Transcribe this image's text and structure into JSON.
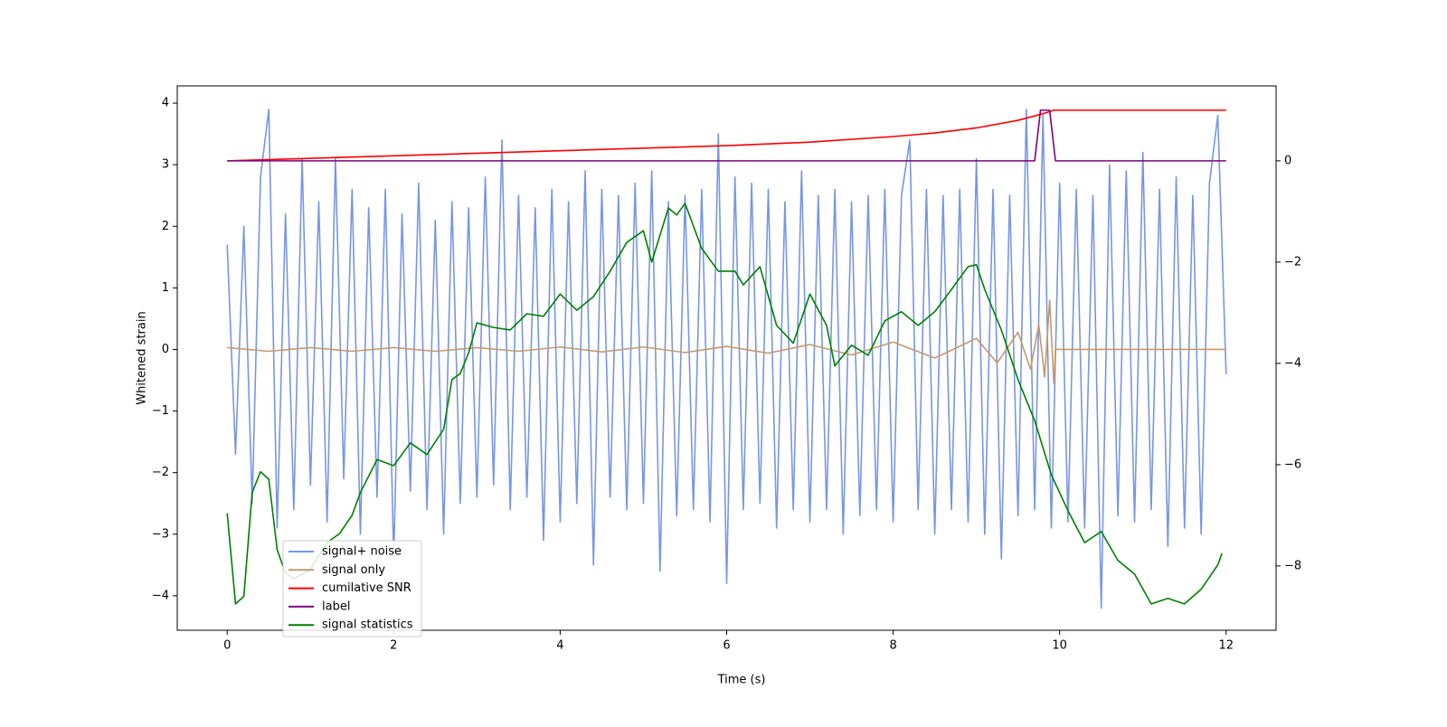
{
  "chart_data": {
    "type": "line",
    "xlabel": "Time (s)",
    "ylabel": "Whitened strain",
    "xlim": [
      -0.6,
      12.6
    ],
    "xticks": [
      0,
      2,
      4,
      6,
      8,
      10,
      12
    ],
    "ylim": [
      -4.56,
      4.28
    ],
    "yticks": [
      {
        "value": -4,
        "label": "−4"
      },
      {
        "value": -3,
        "label": "−3"
      },
      {
        "value": -2,
        "label": "−2"
      },
      {
        "value": -1,
        "label": "−1"
      },
      0,
      1,
      2,
      3,
      4
    ],
    "y2lim": [
      -9.27,
      1.48
    ],
    "y2ticks": [
      {
        "value": -8,
        "label": "−8"
      },
      {
        "value": -6,
        "label": "−6"
      },
      {
        "value": -4,
        "label": "−4"
      },
      {
        "value": -2,
        "label": "−2"
      },
      0
    ],
    "legend": "lower left",
    "series": [
      {
        "name": "signal+ noise",
        "color": "#7896e8",
        "x": [
          0,
          0.1,
          0.2,
          0.3,
          0.4,
          0.5,
          0.6,
          0.7,
          0.8,
          0.9,
          1,
          1.1,
          1.2,
          1.3,
          1.4,
          1.5,
          1.6,
          1.7,
          1.8,
          1.9,
          2,
          2.1,
          2.2,
          2.3,
          2.4,
          2.5,
          2.6,
          2.7,
          2.8,
          2.9,
          3,
          3.1,
          3.2,
          3.3,
          3.4,
          3.5,
          3.6,
          3.7,
          3.8,
          3.9,
          4,
          4.1,
          4.2,
          4.3,
          4.4,
          4.5,
          4.6,
          4.7,
          4.8,
          4.9,
          5,
          5.1,
          5.2,
          5.3,
          5.4,
          5.5,
          5.6,
          5.7,
          5.8,
          5.9,
          6,
          6.1,
          6.2,
          6.3,
          6.4,
          6.5,
          6.6,
          6.7,
          6.8,
          6.9,
          7,
          7.1,
          7.2,
          7.3,
          7.4,
          7.5,
          7.6,
          7.7,
          7.8,
          7.9,
          8,
          8.1,
          8.2,
          8.3,
          8.4,
          8.5,
          8.6,
          8.7,
          8.8,
          8.9,
          9,
          9.1,
          9.2,
          9.3,
          9.4,
          9.5,
          9.6,
          9.7,
          9.8,
          9.9,
          10,
          10.1,
          10.2,
          10.3,
          10.4,
          10.5,
          10.6,
          10.7,
          10.8,
          10.9,
          11,
          11.1,
          11.2,
          11.3,
          11.4,
          11.5,
          11.6,
          11.7,
          11.8,
          11.9,
          12
        ],
        "values": [
          1.7,
          -1.7,
          2.0,
          -2.5,
          2.8,
          3.9,
          -2.9,
          2.2,
          -2.6,
          3.1,
          -2.2,
          2.4,
          -2.8,
          3.1,
          -2.1,
          2.6,
          -3.0,
          2.3,
          -2.4,
          2.6,
          -3.4,
          2.2,
          -2.3,
          2.7,
          -2.6,
          2.1,
          -3.0,
          2.4,
          -2.5,
          2.3,
          -2.4,
          2.8,
          -2.2,
          3.4,
          -2.6,
          2.5,
          -2.4,
          2.3,
          -3.1,
          2.6,
          -2.8,
          2.4,
          -2.5,
          2.9,
          -3.5,
          2.6,
          -2.4,
          2.5,
          -2.6,
          2.7,
          -2.5,
          2.9,
          -3.6,
          2.4,
          -2.7,
          2.5,
          -2.6,
          2.6,
          -2.8,
          3.5,
          -3.8,
          2.8,
          -2.6,
          2.7,
          -2.5,
          2.6,
          -2.9,
          2.4,
          -2.6,
          2.9,
          -2.8,
          2.5,
          -2.6,
          2.6,
          -3.0,
          2.4,
          -2.7,
          2.5,
          -2.6,
          2.6,
          -2.8,
          2.5,
          3.4,
          -2.6,
          2.6,
          -3.0,
          2.5,
          -2.6,
          2.6,
          -2.8,
          3.1,
          -3.0,
          2.6,
          -3.4,
          2.5,
          -2.7,
          3.9,
          -2.6,
          3.8,
          -2.9,
          2.7,
          -2.8,
          2.6,
          -2.9,
          2.5,
          -4.2,
          3.0,
          -2.7,
          2.9,
          -2.8,
          3.2,
          -2.6,
          2.6,
          -3.2,
          2.8,
          -2.9,
          2.5,
          -3.0,
          2.7,
          3.8,
          -0.4
        ]
      },
      {
        "name": "signal only",
        "color": "#c49a6c",
        "x": [
          0,
          0.5,
          1,
          1.5,
          2,
          2.5,
          3,
          3.5,
          4,
          4.5,
          5,
          5.5,
          6,
          6.5,
          7,
          7.5,
          8,
          8.5,
          9,
          9.25,
          9.5,
          9.65,
          9.75,
          9.82,
          9.88,
          9.93,
          9.95,
          12
        ],
        "values": [
          0.03,
          -0.03,
          0.03,
          -0.03,
          0.03,
          -0.03,
          0.03,
          -0.03,
          0.04,
          -0.04,
          0.04,
          -0.05,
          0.05,
          -0.06,
          0.08,
          -0.09,
          0.12,
          -0.14,
          0.18,
          -0.22,
          0.28,
          -0.32,
          0.4,
          -0.45,
          0.8,
          -0.55,
          0,
          0
        ]
      },
      {
        "name": "cumilative SNR",
        "color": "#ff0000",
        "axis": "y2",
        "x": [
          0,
          2,
          4,
          6,
          7,
          8,
          8.5,
          9,
          9.5,
          9.8,
          9.93,
          12
        ],
        "values": [
          0,
          0.1,
          0.2,
          0.3,
          0.37,
          0.48,
          0.55,
          0.65,
          0.8,
          0.93,
          1.0,
          1.0
        ]
      },
      {
        "name": "label",
        "color": "#800080",
        "axis": "y2",
        "x": [
          0,
          9.7,
          9.77,
          9.88,
          9.95,
          12
        ],
        "values": [
          0,
          0,
          1,
          1,
          0,
          0
        ]
      },
      {
        "name": "signal statistics",
        "color": "#008000",
        "axis": "y2",
        "x": [
          0,
          0.1,
          0.2,
          0.3,
          0.4,
          0.5,
          0.6,
          0.7,
          0.8,
          1.0,
          1.2,
          1.35,
          1.5,
          1.6,
          1.8,
          2.0,
          2.2,
          2.4,
          2.6,
          2.7,
          2.8,
          2.9,
          3.0,
          3.2,
          3.4,
          3.6,
          3.8,
          4.0,
          4.2,
          4.4,
          4.6,
          4.8,
          5.0,
          5.1,
          5.3,
          5.4,
          5.5,
          5.7,
          5.9,
          6.1,
          6.2,
          6.4,
          6.6,
          6.8,
          7.0,
          7.2,
          7.3,
          7.5,
          7.7,
          7.9,
          8.1,
          8.3,
          8.5,
          8.7,
          8.9,
          9.0,
          9.1,
          9.3,
          9.5,
          9.7,
          9.9,
          10.1,
          10.3,
          10.5,
          10.7,
          10.9,
          11.1,
          11.3,
          11.5,
          11.7,
          11.9,
          11.95
        ],
        "values": [
          -6.96,
          -8.75,
          -8.6,
          -6.55,
          -6.14,
          -6.29,
          -7.68,
          -8.14,
          -8.25,
          -8.07,
          -7.54,
          -7.36,
          -7.0,
          -6.55,
          -5.9,
          -6.02,
          -5.57,
          -5.8,
          -5.3,
          -4.32,
          -4.2,
          -3.79,
          -3.2,
          -3.29,
          -3.34,
          -3.02,
          -3.07,
          -2.63,
          -2.95,
          -2.68,
          -2.18,
          -1.61,
          -1.38,
          -2.0,
          -0.93,
          -1.07,
          -0.84,
          -1.73,
          -2.18,
          -2.18,
          -2.45,
          -2.09,
          -3.25,
          -3.6,
          -2.63,
          -3.25,
          -4.05,
          -3.64,
          -3.84,
          -3.16,
          -2.98,
          -3.25,
          -2.98,
          -2.54,
          -2.09,
          -2.05,
          -2.54,
          -3.34,
          -4.32,
          -5.13,
          -6.2,
          -6.91,
          -7.54,
          -7.32,
          -7.89,
          -8.16,
          -8.75,
          -8.64,
          -8.75,
          -8.46,
          -7.98,
          -7.75
        ]
      }
    ]
  }
}
